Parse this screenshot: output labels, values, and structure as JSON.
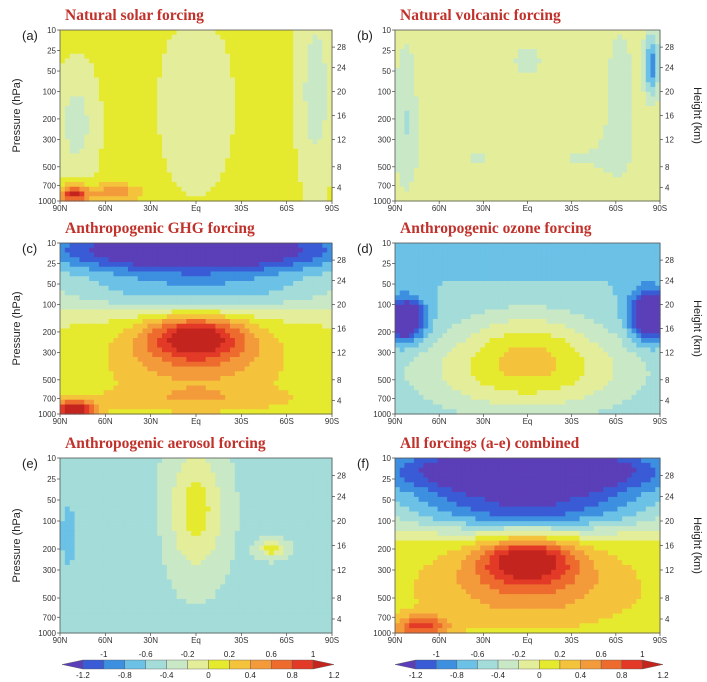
{
  "chart_data": {
    "type": "heatmap",
    "shared_axes": {
      "x_ticks": [
        "90N",
        "60N",
        "30N",
        "Eq",
        "30S",
        "60S",
        "90S"
      ],
      "pressure_label": "Pressure (hPa)",
      "pressure_ticks": [
        "10",
        "25",
        "50",
        "100",
        "200",
        "300",
        "500",
        "700",
        "1000"
      ],
      "height_label": "Height (km)",
      "height_ticks": [
        "28",
        "24",
        "20",
        "16",
        "12",
        "8",
        "4"
      ]
    },
    "colorbar": {
      "labels_top": [
        "-1",
        "-0.6",
        "-0.2",
        "0.2",
        "0.6",
        "1"
      ],
      "labels_bottom": [
        "-1.2",
        "-0.8",
        "-0.4",
        "0",
        "0.4",
        "0.8",
        "1.2"
      ],
      "bins": [
        -1.2,
        -1.0,
        -0.8,
        -0.6,
        -0.4,
        -0.2,
        0,
        0.2,
        0.4,
        0.6,
        0.8,
        1.0,
        1.2
      ],
      "colors": [
        "#5b3fb8",
        "#3a5bd6",
        "#3d8fe0",
        "#6bc1e6",
        "#a3dcd8",
        "#c8e8c6",
        "#e4ee9a",
        "#e6ea2e",
        "#f5c23c",
        "#f39a3a",
        "#ee6b2e",
        "#e23a26",
        "#c4241e"
      ]
    },
    "panels": [
      {
        "id": "a",
        "label": "(a)",
        "title": "Natural solar forcing",
        "base": 0.25,
        "features": [
          [
            0.06,
            0.55,
            0.07,
            0.3,
            -0.35
          ],
          [
            0.94,
            0.35,
            0.06,
            0.5,
            -0.38
          ],
          [
            0.5,
            0.45,
            0.12,
            0.45,
            -0.2
          ],
          [
            0.05,
            0.96,
            0.05,
            0.05,
            1.0
          ],
          [
            0.2,
            0.95,
            0.1,
            0.05,
            0.5
          ]
        ]
      },
      {
        "id": "b",
        "label": "(b)",
        "title": "Natural volcanic forcing",
        "base": 0.2,
        "features": [
          [
            0.04,
            0.5,
            0.05,
            0.5,
            -0.4
          ],
          [
            0.97,
            0.2,
            0.03,
            0.2,
            -0.9
          ],
          [
            0.3,
            0.75,
            0.2,
            0.2,
            -0.2
          ],
          [
            0.7,
            0.75,
            0.2,
            0.2,
            -0.2
          ],
          [
            0.85,
            0.35,
            0.07,
            0.5,
            -0.3
          ],
          [
            0.5,
            0.18,
            0.1,
            0.15,
            -0.25
          ]
        ]
      },
      {
        "id": "c",
        "label": "(c)",
        "title": "Anthropogenic GHG forcing",
        "base": 0.2,
        "features": [
          [
            0.5,
            0.04,
            0.65,
            0.16,
            -1.7
          ],
          [
            0.5,
            0.3,
            0.6,
            0.12,
            -0.6
          ],
          [
            0.5,
            0.55,
            0.18,
            0.13,
            1.0
          ],
          [
            0.5,
            0.7,
            0.35,
            0.22,
            0.45
          ],
          [
            0.05,
            0.97,
            0.08,
            0.05,
            1.2
          ],
          [
            0.5,
            0.92,
            0.45,
            0.08,
            0.25
          ]
        ]
      },
      {
        "id": "d",
        "label": "(d)",
        "title": "Anthropogenic ozone forcing",
        "base": -0.4,
        "features": [
          [
            0.5,
            0.75,
            0.4,
            0.25,
            0.75
          ],
          [
            0.5,
            0.55,
            0.22,
            0.2,
            0.3
          ],
          [
            0.04,
            0.45,
            0.07,
            0.12,
            -1.3
          ],
          [
            0.96,
            0.42,
            0.07,
            0.14,
            -1.3
          ],
          [
            0.5,
            0.1,
            0.3,
            0.15,
            -0.05
          ]
        ]
      },
      {
        "id": "e",
        "label": "(e)",
        "title": "Anthropogenic aerosol forcing",
        "base": -0.25,
        "features": [
          [
            0.5,
            0.3,
            0.1,
            0.35,
            0.55
          ],
          [
            0.78,
            0.52,
            0.05,
            0.05,
            0.55
          ],
          [
            0.3,
            0.5,
            0.08,
            0.25,
            -0.05
          ],
          [
            0.03,
            0.45,
            0.03,
            0.2,
            -0.3
          ]
        ]
      },
      {
        "id": "f",
        "label": "(f)",
        "title": "All forcings (a-e) combined",
        "base": 0.3,
        "features": [
          [
            0.5,
            0.07,
            0.65,
            0.18,
            -1.9
          ],
          [
            0.5,
            0.32,
            0.55,
            0.13,
            -0.9
          ],
          [
            0.5,
            0.58,
            0.18,
            0.13,
            1.0
          ],
          [
            0.5,
            0.74,
            0.35,
            0.2,
            0.45
          ],
          [
            0.1,
            0.96,
            0.1,
            0.06,
            0.8
          ]
        ]
      }
    ]
  }
}
